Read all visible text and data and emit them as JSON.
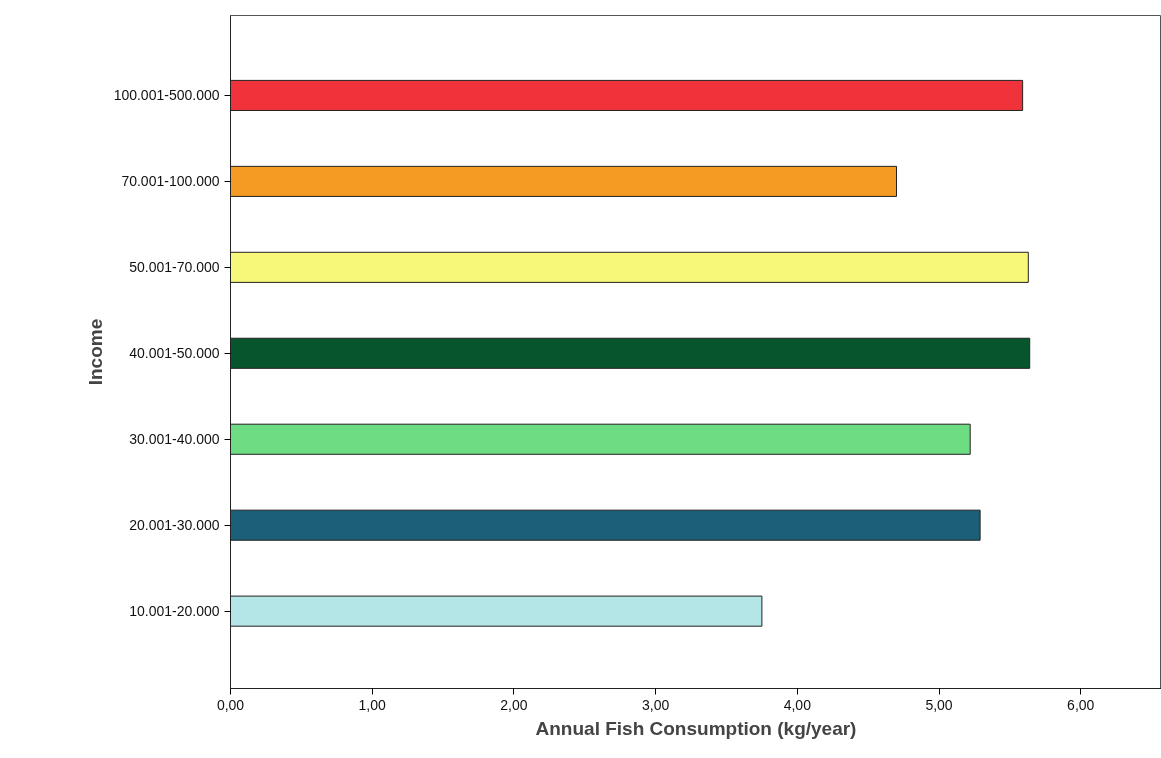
{
  "chart_data": {
    "type": "bar",
    "orientation": "horizontal",
    "xlabel": "Annual Fish Consumption (kg/year)",
    "ylabel": "Income",
    "categories": [
      "100.001-500.000",
      "70.001-100.000",
      "50.001-70.000",
      "40.001-50.000",
      "30.001-40.000",
      "20.001-30.000",
      "10.001-20.000"
    ],
    "values": [
      5.59,
      4.7,
      5.63,
      5.64,
      5.22,
      5.29,
      3.75
    ],
    "colors": [
      "#f0323a",
      "#f59a23",
      "#f7f77a",
      "#07552d",
      "#6ddc82",
      "#1c5f78",
      "#b4e6e8"
    ],
    "xlim": [
      0,
      6.57
    ],
    "xticks": [
      {
        "value": 0,
        "label": "0,00"
      },
      {
        "value": 1,
        "label": "1,00"
      },
      {
        "value": 2,
        "label": "2,00"
      },
      {
        "value": 3,
        "label": "3,00"
      },
      {
        "value": 4,
        "label": "4,00"
      },
      {
        "value": 5,
        "label": "5,00"
      },
      {
        "value": 6,
        "label": "6,00"
      }
    ],
    "grid": false
  }
}
